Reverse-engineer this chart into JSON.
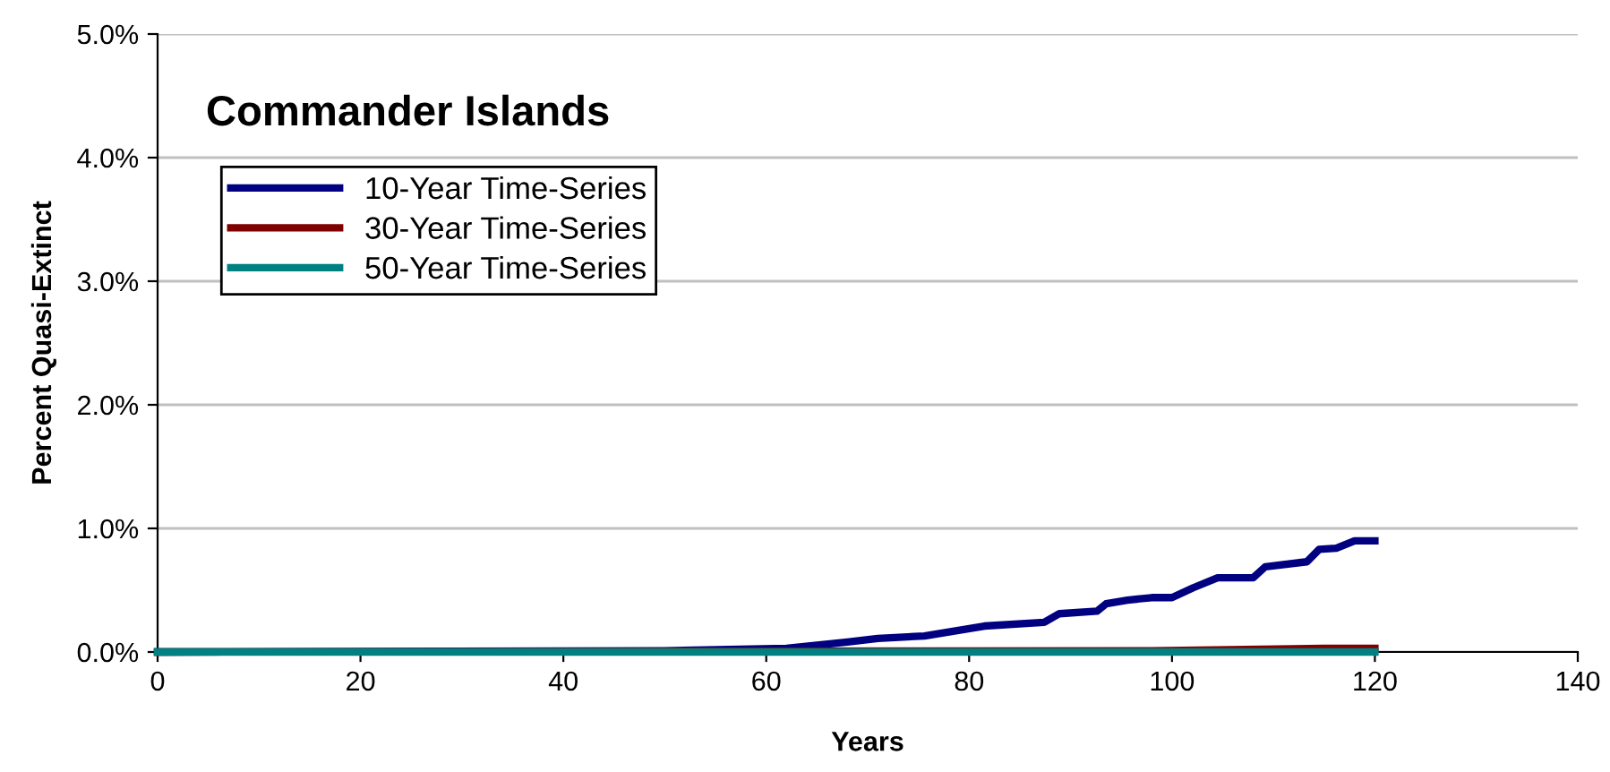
{
  "chart_data": {
    "type": "line",
    "title": "Commander Islands",
    "xlabel": "Years",
    "ylabel": "Percent Quasi-Extinct",
    "xlim": [
      0,
      140
    ],
    "xticks": [
      0,
      20,
      40,
      60,
      80,
      100,
      120,
      140
    ],
    "ylim": [
      0,
      5
    ],
    "yticks": [
      {
        "value": 0,
        "label": "0.0%"
      },
      {
        "value": 1,
        "label": "1.0%"
      },
      {
        "value": 2,
        "label": "2.0%"
      },
      {
        "value": 3,
        "label": "3.0%"
      },
      {
        "value": 4,
        "label": "4.0%"
      },
      {
        "value": 5,
        "label": "5.0%"
      }
    ],
    "grid": "y",
    "legend": "top left",
    "line_style": "solid",
    "marker": "none",
    "series": [
      {
        "name": "10-Year Time-Series",
        "color": "#000080",
        "x": [
          0,
          50,
          62,
          68,
          71,
          75.6,
          81.5,
          87.4,
          88.9,
          92.6,
          93.5,
          95.6,
          98,
          100,
          102.1,
          104.5,
          108,
          109.2,
          113.3,
          114.5,
          116.2,
          118,
          120
        ],
        "values": [
          0,
          0.01,
          0.03,
          0.08,
          0.11,
          0.13,
          0.21,
          0.24,
          0.31,
          0.33,
          0.39,
          0.42,
          0.44,
          0.44,
          0.52,
          0.6,
          0.6,
          0.69,
          0.73,
          0.83,
          0.84,
          0.9,
          0.9
        ]
      },
      {
        "name": "30-Year Time-Series",
        "color": "#800000",
        "x": [
          0,
          98,
          115,
          120
        ],
        "values": [
          0,
          0.01,
          0.03,
          0.03
        ]
      },
      {
        "name": "50-Year Time-Series",
        "color": "#008080",
        "x": [
          0,
          120
        ],
        "values": [
          0,
          0
        ]
      }
    ]
  }
}
